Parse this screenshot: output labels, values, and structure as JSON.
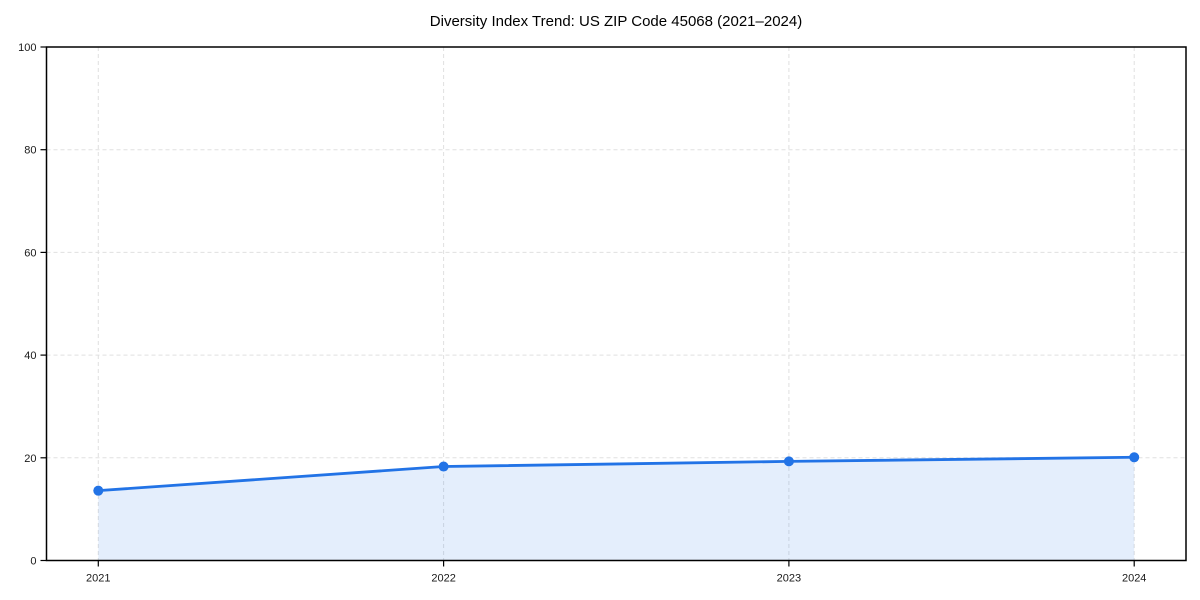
{
  "chart_data": {
    "type": "line",
    "title": "Diversity Index Trend: US ZIP Code 45068 (2021–2024)",
    "x": [
      2021,
      2022,
      2023,
      2024
    ],
    "series": [
      {
        "name": "Diversity Index",
        "values": [
          13.6,
          18.3,
          19.3,
          20.1
        ]
      }
    ],
    "xlabel": "",
    "ylabel": "",
    "xlim": [
      2020.85,
      2024.15
    ],
    "ylim": [
      0,
      100
    ],
    "xticks": [
      2021,
      2022,
      2023,
      2024
    ],
    "yticks": [
      0,
      20,
      40,
      60,
      80,
      100
    ],
    "grid": true,
    "grid_style": "dashed",
    "legend": false,
    "area_fill": true,
    "marker": "circle",
    "colors": {
      "line": "#2273e6",
      "marker": "#2273e6",
      "fill": "rgba(34,115,230,0.12)",
      "grid": "#e0e0e0",
      "frame": "#000000",
      "tick_label": "#1a1a1a",
      "background": "#ffffff"
    }
  }
}
